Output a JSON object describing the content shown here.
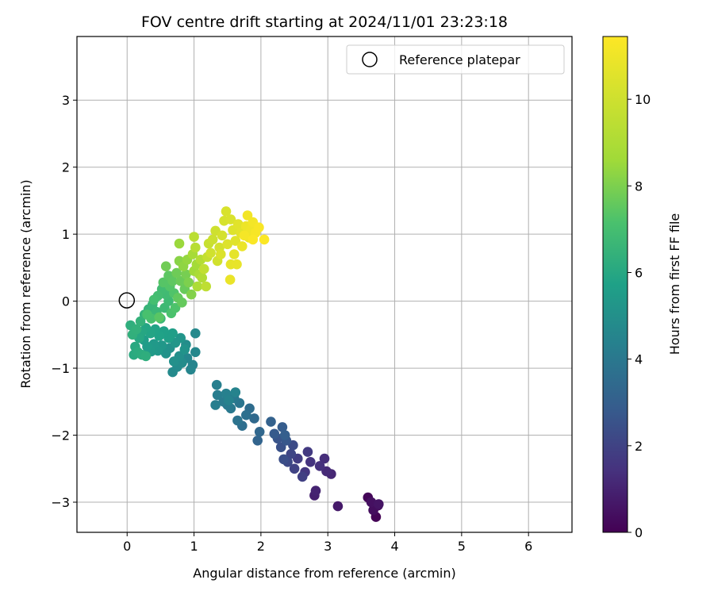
{
  "chart_data": {
    "type": "scatter",
    "title": "FOV centre drift starting at 2024/11/01 23:23:18",
    "xlabel": "Angular distance from reference (arcmin)",
    "ylabel": "Rotation from reference (arcmin)",
    "xlim": [
      -0.75,
      6.65
    ],
    "ylim": [
      -3.45,
      3.95
    ],
    "xticks": [
      0,
      1,
      2,
      3,
      4,
      5,
      6
    ],
    "yticks": [
      -3,
      -2,
      -1,
      0,
      1,
      2,
      3
    ],
    "grid": true,
    "colormap": "viridis",
    "colorbar": {
      "label": "Hours from first FF file",
      "range": [
        0,
        11.45
      ],
      "ticks": [
        0,
        2,
        4,
        6,
        8,
        10
      ]
    },
    "legend": {
      "position": "top-right",
      "entries": [
        "Reference platepar"
      ]
    },
    "reference_point": {
      "x": 0,
      "y": 0
    },
    "points": [
      [
        3.72,
        -3.22,
        0.05
      ],
      [
        3.6,
        -2.93,
        0.15
      ],
      [
        3.75,
        -3.05,
        0.25
      ],
      [
        3.68,
        -3.12,
        0.35
      ],
      [
        3.65,
        -3.0,
        0.45
      ],
      [
        3.76,
        -3.03,
        0.55
      ],
      [
        3.15,
        -3.06,
        0.7
      ],
      [
        2.8,
        -2.9,
        0.9
      ],
      [
        2.82,
        -2.83,
        1.0
      ],
      [
        3.05,
        -2.58,
        1.1
      ],
      [
        2.98,
        -2.54,
        1.2
      ],
      [
        2.95,
        -2.35,
        1.3
      ],
      [
        2.88,
        -2.46,
        1.4
      ],
      [
        2.74,
        -2.4,
        1.5
      ],
      [
        2.66,
        -2.55,
        1.6
      ],
      [
        2.7,
        -2.25,
        1.7
      ],
      [
        2.55,
        -2.35,
        1.8
      ],
      [
        2.62,
        -2.62,
        1.9
      ],
      [
        2.5,
        -2.5,
        2.0
      ],
      [
        2.45,
        -2.28,
        2.1
      ],
      [
        2.4,
        -2.4,
        2.2
      ],
      [
        2.48,
        -2.15,
        2.3
      ],
      [
        2.34,
        -2.36,
        2.4
      ],
      [
        2.3,
        -2.18,
        2.5
      ],
      [
        2.25,
        -2.05,
        2.6
      ],
      [
        2.38,
        -2.08,
        2.7
      ],
      [
        2.2,
        -1.98,
        2.8
      ],
      [
        2.32,
        -1.88,
        2.9
      ],
      [
        2.36,
        -2.0,
        3.0
      ],
      [
        2.15,
        -1.8,
        3.1
      ],
      [
        1.95,
        -2.08,
        3.2
      ],
      [
        1.98,
        -1.95,
        3.3
      ],
      [
        1.9,
        -1.75,
        3.4
      ],
      [
        1.83,
        -1.6,
        3.5
      ],
      [
        1.72,
        -1.86,
        3.6
      ],
      [
        1.78,
        -1.7,
        3.7
      ],
      [
        1.65,
        -1.78,
        3.8
      ],
      [
        1.68,
        -1.52,
        3.9
      ],
      [
        1.6,
        -1.45,
        4.0
      ],
      [
        1.55,
        -1.6,
        4.05
      ],
      [
        1.5,
        -1.55,
        4.1
      ],
      [
        1.44,
        -1.5,
        4.15
      ],
      [
        1.35,
        -1.4,
        4.2
      ],
      [
        1.32,
        -1.55,
        4.25
      ],
      [
        1.34,
        -1.25,
        4.3
      ],
      [
        1.48,
        -1.38,
        4.35
      ],
      [
        1.52,
        -1.48,
        4.4
      ],
      [
        1.62,
        -1.36,
        4.45
      ],
      [
        0.98,
        -0.95,
        4.5
      ],
      [
        0.95,
        -1.02,
        4.55
      ],
      [
        0.9,
        -0.85,
        4.6
      ],
      [
        1.02,
        -0.76,
        4.65
      ],
      [
        1.02,
        -0.48,
        4.7
      ],
      [
        0.68,
        -1.06,
        4.75
      ],
      [
        0.75,
        -0.98,
        4.8
      ],
      [
        0.82,
        -0.92,
        4.85
      ],
      [
        0.88,
        -0.65,
        4.9
      ],
      [
        0.78,
        -0.82,
        4.95
      ],
      [
        0.7,
        -0.9,
        5.0
      ],
      [
        0.64,
        -0.7,
        5.05
      ],
      [
        0.58,
        -0.78,
        5.1
      ],
      [
        0.86,
        -0.72,
        5.15
      ],
      [
        0.8,
        -0.55,
        5.2
      ],
      [
        0.72,
        -0.62,
        5.25
      ],
      [
        0.52,
        -0.66,
        5.3
      ],
      [
        0.46,
        -0.74,
        5.35
      ],
      [
        0.4,
        -0.64,
        5.4
      ],
      [
        0.36,
        -0.75,
        5.45
      ],
      [
        0.3,
        -0.68,
        5.5
      ],
      [
        0.25,
        -0.58,
        5.55
      ],
      [
        0.68,
        -0.48,
        5.6
      ],
      [
        0.62,
        -0.55,
        5.65
      ],
      [
        0.55,
        -0.45,
        5.7
      ],
      [
        0.48,
        -0.52,
        5.75
      ],
      [
        0.42,
        -0.42,
        5.8
      ],
      [
        0.35,
        -0.48,
        5.85
      ],
      [
        0.28,
        -0.4,
        5.9
      ],
      [
        0.22,
        -0.46,
        5.95
      ],
      [
        0.18,
        -0.55,
        6.0
      ],
      [
        0.12,
        -0.68,
        6.05
      ],
      [
        0.1,
        -0.8,
        6.1
      ],
      [
        0.16,
        -0.76,
        6.15
      ],
      [
        0.22,
        -0.8,
        6.2
      ],
      [
        0.28,
        -0.82,
        6.25
      ],
      [
        0.05,
        -0.36,
        6.3
      ],
      [
        0.08,
        -0.5,
        6.35
      ],
      [
        0.14,
        -0.42,
        6.4
      ],
      [
        0.2,
        -0.3,
        6.45
      ],
      [
        0.26,
        -0.2,
        6.5
      ],
      [
        0.32,
        -0.12,
        6.55
      ],
      [
        0.38,
        -0.05,
        6.6
      ],
      [
        0.44,
        -0.16,
        6.65
      ],
      [
        0.5,
        -0.26,
        6.7
      ],
      [
        0.56,
        -0.1,
        6.75
      ],
      [
        0.62,
        0.0,
        6.8
      ],
      [
        0.58,
        0.1,
        6.85
      ],
      [
        0.52,
        0.18,
        6.9
      ],
      [
        0.46,
        0.08,
        6.95
      ],
      [
        0.4,
        0.02,
        7.0
      ],
      [
        0.36,
        -0.26,
        7.05
      ],
      [
        0.3,
        -0.2,
        7.1
      ],
      [
        0.66,
        -0.18,
        7.15
      ],
      [
        0.72,
        -0.1,
        7.2
      ],
      [
        0.7,
        0.12,
        7.25
      ],
      [
        0.64,
        0.22,
        7.3
      ],
      [
        0.54,
        0.28,
        7.35
      ],
      [
        0.48,
        -0.24,
        7.4
      ],
      [
        0.62,
        0.38,
        7.45
      ],
      [
        0.68,
        0.3,
        7.5
      ],
      [
        0.76,
        0.05,
        7.55
      ],
      [
        0.82,
        -0.02,
        7.6
      ],
      [
        0.86,
        0.18,
        7.65
      ],
      [
        0.8,
        0.3,
        7.7
      ],
      [
        0.74,
        0.42,
        7.75
      ],
      [
        0.58,
        0.52,
        7.8
      ],
      [
        0.88,
        0.4,
        7.9
      ],
      [
        0.92,
        0.28,
        8.0
      ],
      [
        0.96,
        0.1,
        8.1
      ],
      [
        0.78,
        0.6,
        8.2
      ],
      [
        0.84,
        0.52,
        8.3
      ],
      [
        0.9,
        0.62,
        8.4
      ],
      [
        0.78,
        0.86,
        8.5
      ],
      [
        1.0,
        0.45,
        8.6
      ],
      [
        1.04,
        0.55,
        8.7
      ],
      [
        0.98,
        0.7,
        8.8
      ],
      [
        1.08,
        0.4,
        8.9
      ],
      [
        1.05,
        0.22,
        9.0
      ],
      [
        1.12,
        0.35,
        9.1
      ],
      [
        1.1,
        0.62,
        9.2
      ],
      [
        1.02,
        0.8,
        9.3
      ],
      [
        1.0,
        0.96,
        9.4
      ],
      [
        1.18,
        0.22,
        9.5
      ],
      [
        1.15,
        0.48,
        9.6
      ],
      [
        1.2,
        0.66,
        9.7
      ],
      [
        1.22,
        0.86,
        9.8
      ],
      [
        1.28,
        0.92,
        9.9
      ],
      [
        1.32,
        1.05,
        10.0
      ],
      [
        1.25,
        0.72,
        10.05
      ],
      [
        1.35,
        0.6,
        10.1
      ],
      [
        1.38,
        0.8,
        10.15
      ],
      [
        1.42,
        0.98,
        10.2
      ],
      [
        1.45,
        1.2,
        10.25
      ],
      [
        1.48,
        1.34,
        10.3
      ],
      [
        1.55,
        1.22,
        10.35
      ],
      [
        1.4,
        0.7,
        10.4
      ],
      [
        1.5,
        0.85,
        10.45
      ],
      [
        1.58,
        1.06,
        10.5
      ],
      [
        1.62,
        0.9,
        10.55
      ],
      [
        1.66,
        1.15,
        10.6
      ],
      [
        1.7,
        1.02,
        10.65
      ],
      [
        1.6,
        0.7,
        10.7
      ],
      [
        1.55,
        0.55,
        10.75
      ],
      [
        1.64,
        0.55,
        10.8
      ],
      [
        1.54,
        0.32,
        10.85
      ],
      [
        1.72,
        0.82,
        10.9
      ],
      [
        1.78,
        1.12,
        10.95
      ],
      [
        1.82,
        0.95,
        11.0
      ],
      [
        1.85,
        1.06,
        11.05
      ],
      [
        1.8,
        1.28,
        11.1
      ],
      [
        1.88,
        1.18,
        11.15
      ],
      [
        1.75,
        0.98,
        11.2
      ],
      [
        1.92,
        1.02,
        11.25
      ],
      [
        1.97,
        1.1,
        11.3
      ],
      [
        1.88,
        0.92,
        11.35
      ],
      [
        2.05,
        0.92,
        11.4
      ]
    ]
  }
}
